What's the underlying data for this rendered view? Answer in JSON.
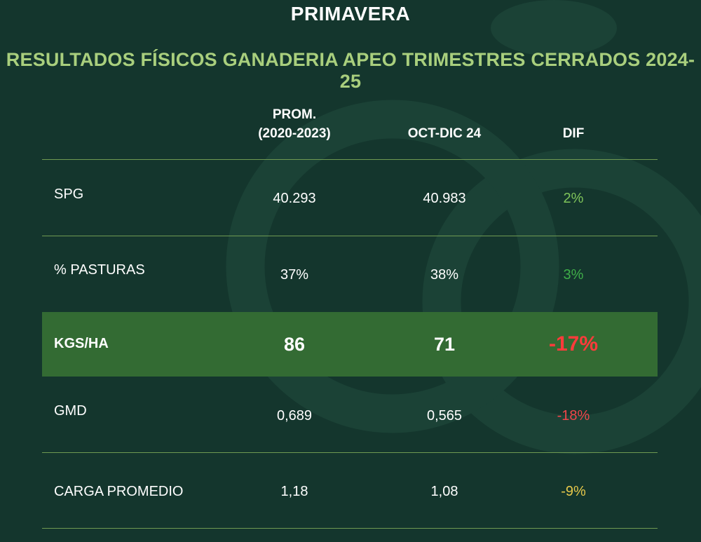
{
  "title": "PRIMAVERA",
  "subtitle": "RESULTADOS FÍSICOS GANADERIA APEO TRIMESTRES CERRADOS 2024-25",
  "columns": {
    "prom_line1": "PROM.",
    "prom_line2": "(2020-2023)",
    "current": "OCT-DIC 24",
    "diff": "DIF"
  },
  "rows": [
    {
      "label": "SPG",
      "prom": "40.293",
      "current": "40.983",
      "diff": "2%",
      "diff_color": "#7fc45a"
    },
    {
      "label": "% PASTURAS",
      "prom": "37%",
      "current": "38%",
      "diff": "3%",
      "diff_color": "#3fae49"
    },
    {
      "label": "KGS/HA",
      "prom": "86",
      "current": "71",
      "diff": "-17%",
      "diff_color": "#ff3b3b"
    },
    {
      "label": "GMD",
      "prom": "0,689",
      "current": "0,565",
      "diff": "-18%",
      "diff_color": "#f0464a"
    },
    {
      "label": "CARGA PROMEDIO",
      "prom": "1,18",
      "current": "1,08",
      "diff": "-9%",
      "diff_color": "#e6c84a"
    }
  ],
  "colors": {
    "background": "#14362d",
    "subtitle": "#a9cf7d",
    "highlight_row": "#336b33",
    "rule": "#6f9a52"
  }
}
